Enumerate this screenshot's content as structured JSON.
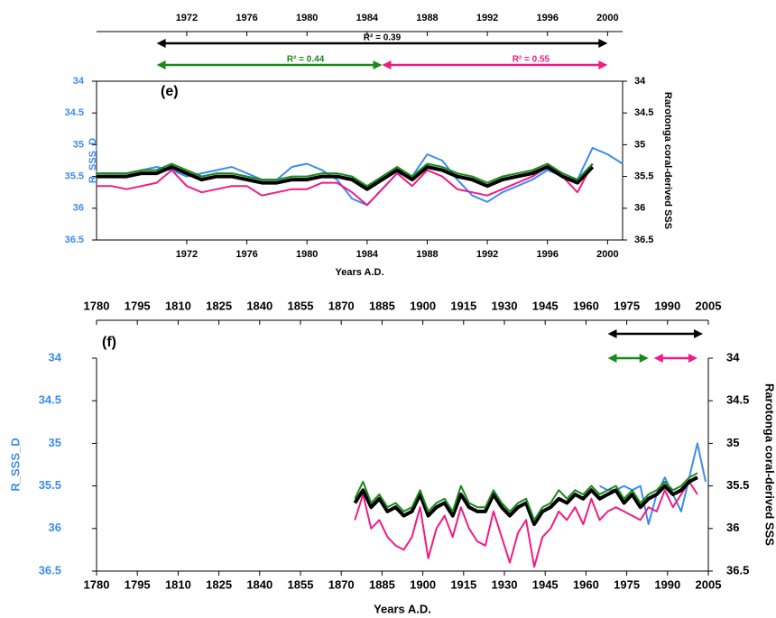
{
  "chart_data": [
    {
      "type": "line",
      "panel_label": "(e)",
      "y_label": "R_SSS_D",
      "y2_label": "Rarotonga coral-derived SSS",
      "x_label": "Years A.D.",
      "xlim": [
        1966,
        2001
      ],
      "xticks": [
        1972,
        1976,
        1980,
        1984,
        1988,
        1992,
        1996,
        2000
      ],
      "ylim": [
        34,
        36.5
      ],
      "yticks": [
        34,
        34.5,
        35,
        35.5,
        36,
        36.5
      ],
      "y2lim": [
        34,
        36.5
      ],
      "y2ticks": [
        34,
        34.5,
        35,
        35.5,
        36,
        36.5
      ],
      "y_reversed": true,
      "arrows": [
        {
          "color": "#000000",
          "x": [
            1970,
            2000
          ],
          "label": "R² = 0.39"
        },
        {
          "color": "#1a8a1a",
          "x": [
            1970,
            1985
          ],
          "label": "R² = 0.44"
        },
        {
          "color": "#ee1c84",
          "x": [
            1985,
            2000
          ],
          "label": "R² = 0.55"
        }
      ],
      "x": [
        1966,
        1967,
        1968,
        1969,
        1970,
        1971,
        1972,
        1973,
        1974,
        1975,
        1976,
        1977,
        1978,
        1979,
        1980,
        1981,
        1982,
        1983,
        1984,
        1985,
        1986,
        1987,
        1988,
        1989,
        1990,
        1991,
        1992,
        1993,
        1994,
        1995,
        1996,
        1997,
        1998,
        1999,
        2000,
        2001
      ],
      "series": [
        {
          "color": "#3c8cf0",
          "width": 2,
          "values": [
            35.45,
            35.45,
            35.45,
            35.4,
            35.35,
            35.4,
            35.5,
            35.45,
            35.4,
            35.35,
            35.45,
            35.55,
            35.55,
            35.35,
            35.3,
            35.4,
            35.55,
            35.85,
            35.95,
            35.7,
            35.45,
            35.5,
            35.15,
            35.25,
            35.55,
            35.8,
            35.9,
            35.75,
            35.65,
            35.55,
            35.4,
            35.5,
            35.55,
            35.05,
            35.15,
            35.3
          ]
        },
        {
          "color": "#ee1c84",
          "width": 2,
          "values": [
            35.65,
            35.65,
            35.7,
            35.65,
            35.6,
            35.4,
            35.65,
            35.75,
            35.7,
            35.65,
            35.65,
            35.8,
            35.75,
            35.7,
            35.7,
            35.6,
            35.6,
            35.75,
            35.95,
            35.7,
            35.45,
            35.65,
            35.4,
            35.5,
            35.7,
            35.75,
            35.8,
            35.7,
            35.6,
            35.5,
            35.35,
            35.5,
            35.75,
            35.3,
            null,
            null
          ]
        },
        {
          "color": "#000000",
          "width": 4,
          "values": [
            35.5,
            35.5,
            35.5,
            35.45,
            35.45,
            35.35,
            35.45,
            35.55,
            35.5,
            35.5,
            35.55,
            35.6,
            35.6,
            35.55,
            35.55,
            35.5,
            35.5,
            35.55,
            35.7,
            35.55,
            35.4,
            35.55,
            35.35,
            35.4,
            35.5,
            35.55,
            35.65,
            35.55,
            35.5,
            35.45,
            35.35,
            35.5,
            35.6,
            35.35,
            null,
            null
          ]
        },
        {
          "color": "#1a8a1a",
          "width": 2,
          "values": [
            35.45,
            35.45,
            35.45,
            35.4,
            35.4,
            35.3,
            35.4,
            35.5,
            35.45,
            35.45,
            35.5,
            35.55,
            35.55,
            35.5,
            35.5,
            35.45,
            35.45,
            35.5,
            35.65,
            35.5,
            35.35,
            35.5,
            35.3,
            35.35,
            35.45,
            35.5,
            35.6,
            35.5,
            35.45,
            35.4,
            35.3,
            35.45,
            35.55,
            35.3,
            null,
            null
          ]
        }
      ]
    },
    {
      "type": "line",
      "panel_label": "(f)",
      "y_label": "R_SSS_D",
      "y2_label": "Rarotonga coral-derived SSS",
      "x_label": "Years A.D.",
      "xlim": [
        1780,
        2005
      ],
      "xticks": [
        1780,
        1795,
        1810,
        1825,
        1840,
        1855,
        1870,
        1885,
        1900,
        1915,
        1930,
        1945,
        1960,
        1975,
        1990,
        2005
      ],
      "ylim": [
        34,
        36.5
      ],
      "yticks": [
        34,
        34.5,
        35,
        35.5,
        36,
        36.5
      ],
      "y2lim": [
        34,
        36.5
      ],
      "y2ticks": [
        34,
        34.5,
        35,
        35.5,
        36,
        36.5
      ],
      "y_reversed": true,
      "arrows": [
        {
          "color": "#000000",
          "x": [
            1968,
            2003
          ]
        },
        {
          "color": "#1a8a1a",
          "x": [
            1968,
            1983
          ]
        },
        {
          "color": "#ee1c84",
          "x": [
            1985,
            2001
          ]
        }
      ],
      "x": [
        1875,
        1878,
        1881,
        1884,
        1887,
        1890,
        1893,
        1896,
        1899,
        1902,
        1905,
        1908,
        1911,
        1914,
        1917,
        1920,
        1923,
        1926,
        1929,
        1932,
        1935,
        1938,
        1941,
        1944,
        1947,
        1950,
        1953,
        1956,
        1959,
        1962,
        1965,
        1968,
        1971,
        1974,
        1977,
        1980,
        1983,
        1986,
        1989,
        1992,
        1995,
        1998,
        2001,
        2004
      ],
      "series": [
        {
          "color": "#3c8cf0",
          "width": 2,
          "values": [
            null,
            null,
            null,
            null,
            null,
            null,
            null,
            null,
            null,
            null,
            null,
            null,
            null,
            null,
            null,
            null,
            null,
            null,
            null,
            null,
            null,
            null,
            null,
            null,
            null,
            null,
            null,
            null,
            null,
            null,
            35.5,
            35.55,
            35.55,
            35.5,
            35.55,
            35.5,
            35.95,
            35.6,
            35.4,
            35.6,
            35.8,
            35.4,
            35.0,
            35.45
          ]
        },
        {
          "color": "#ee1c84",
          "width": 2,
          "values": [
            35.9,
            35.6,
            36.0,
            35.9,
            36.1,
            36.2,
            36.25,
            36.1,
            35.75,
            36.35,
            36.0,
            35.85,
            36.1,
            35.75,
            36.0,
            36.15,
            36.2,
            35.8,
            36.1,
            36.4,
            36.05,
            35.9,
            36.45,
            36.1,
            36.0,
            35.8,
            35.9,
            35.75,
            35.95,
            35.65,
            35.9,
            35.8,
            35.75,
            35.8,
            35.85,
            35.9,
            35.75,
            35.8,
            35.55,
            35.75,
            35.6,
            35.45,
            35.6,
            null
          ]
        },
        {
          "color": "#000000",
          "width": 4,
          "values": [
            35.7,
            35.55,
            35.75,
            35.65,
            35.8,
            35.75,
            35.85,
            35.8,
            35.6,
            35.85,
            35.75,
            35.7,
            35.85,
            35.6,
            35.75,
            35.8,
            35.8,
            35.6,
            35.75,
            35.85,
            35.75,
            35.7,
            35.95,
            35.8,
            35.75,
            35.65,
            35.7,
            35.6,
            35.65,
            35.55,
            35.65,
            35.6,
            35.55,
            35.7,
            35.6,
            35.75,
            35.65,
            35.6,
            35.5,
            35.6,
            35.55,
            35.45,
            35.4,
            null
          ]
        },
        {
          "color": "#1a8a1a",
          "width": 2,
          "values": [
            35.65,
            35.45,
            35.7,
            35.6,
            35.75,
            35.7,
            35.8,
            35.75,
            35.55,
            35.8,
            35.7,
            35.65,
            35.8,
            35.5,
            35.7,
            35.75,
            35.75,
            35.55,
            35.7,
            35.8,
            35.7,
            35.65,
            35.9,
            35.75,
            35.7,
            35.55,
            35.65,
            35.55,
            35.6,
            35.5,
            35.6,
            35.55,
            35.5,
            35.65,
            35.55,
            35.7,
            35.6,
            35.55,
            35.45,
            35.55,
            35.5,
            35.4,
            35.35,
            null
          ]
        }
      ]
    }
  ]
}
